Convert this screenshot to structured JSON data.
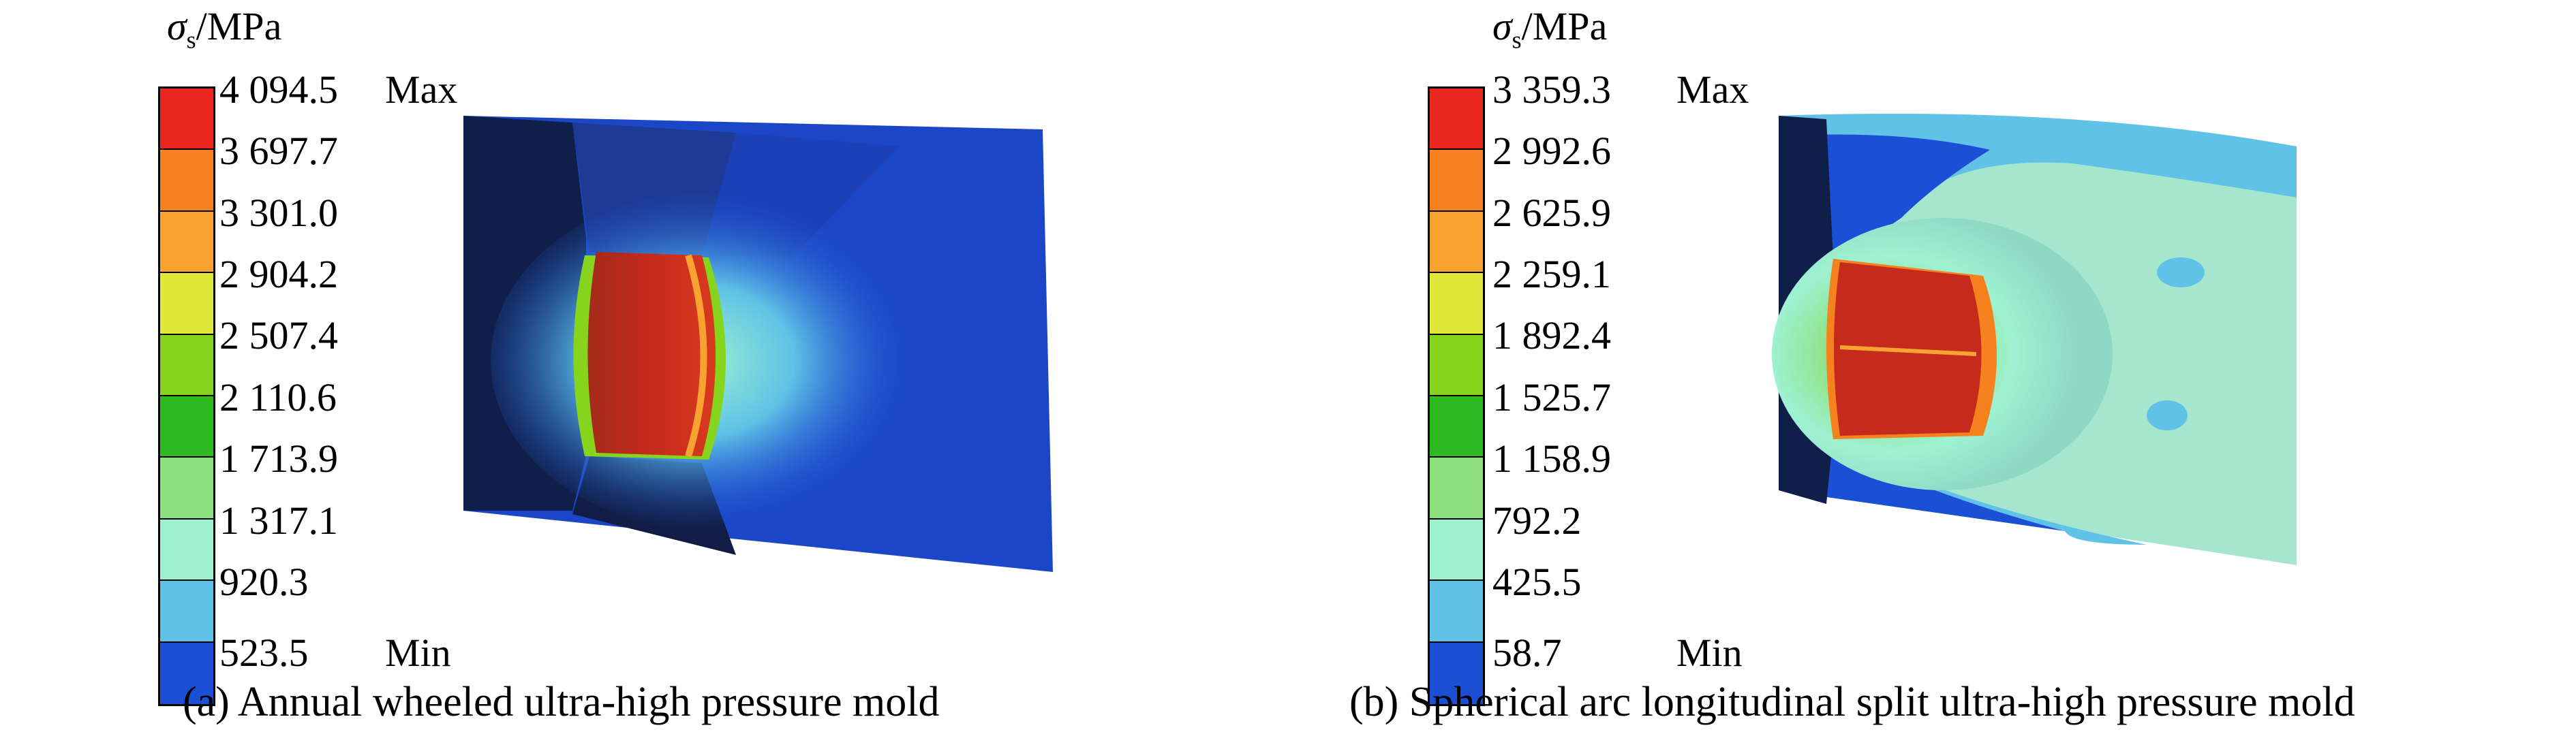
{
  "panels": [
    {
      "legend_symbol": "σ",
      "legend_subscript": "s",
      "legend_unit": "/MPa",
      "max_label": "Max",
      "min_label": "Min",
      "ticks": [
        "4 094.5",
        "3 697.7",
        "3 301.0",
        "2 904.2",
        "2 507.4",
        "2 110.6",
        "1 713.9",
        "1 317.1",
        "920.3",
        "523.5"
      ],
      "caption": "(a) Annual wheeled ultra-high pressure mold"
    },
    {
      "legend_symbol": "σ",
      "legend_subscript": "s",
      "legend_unit": "/MPa",
      "max_label": "Max",
      "min_label": "Min",
      "ticks": [
        "3 359.3",
        "2 992.6",
        "2 625.9",
        "2 259.1",
        "1 892.4",
        "1 525.7",
        "1 158.9",
        "792.2",
        "425.5",
        "58.7"
      ],
      "caption": "(b) Spherical arc longitudinal split ultra-high pressure mold"
    }
  ],
  "colorbar_colors": [
    "#e8281e",
    "#f5821f",
    "#f8a331",
    "#e0e83a",
    "#86d41e",
    "#2fba22",
    "#8de07e",
    "#9ef2d2",
    "#5fc2e6",
    "#1a4fd6"
  ]
}
